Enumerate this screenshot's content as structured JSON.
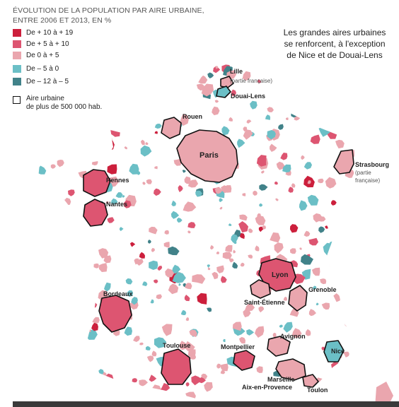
{
  "title": {
    "line1": "ÉVOLUTION DE LA POPULATION PAR AIRE URBAINE,",
    "line2": "ENTRE 2006 ET 2013, EN %"
  },
  "legend": {
    "items": [
      {
        "label": "De + 10 à + 19",
        "color": "#cc1f3c",
        "class_name": "d1"
      },
      {
        "label": "De + 5 à + 10",
        "color": "#dd5571",
        "class_name": "d2"
      },
      {
        "label": "De 0 à + 5",
        "color": "#eaa6ae",
        "class_name": "d3"
      },
      {
        "label": "De – 5 à 0",
        "color": "#6bbfc6",
        "class_name": "d4"
      },
      {
        "label": "De – 12 à – 5",
        "color": "#418289",
        "class_name": "d5"
      }
    ],
    "outline_line1": "Aire urbaine",
    "outline_line2": "de plus de 500 000 hab."
  },
  "callout": {
    "line1": "Les grandes aires urbaines",
    "line2": "se renforcent, à l'exception",
    "line3": "de Nice et de Douai-Lens"
  },
  "cities": [
    {
      "name": "Lille",
      "sub1": "(partie française)",
      "class_name": "d3"
    },
    {
      "name": "Douai-Lens",
      "class_name": "d4"
    },
    {
      "name": "Rouen",
      "class_name": "d3"
    },
    {
      "name": "Paris",
      "class_name": "d3"
    },
    {
      "name": "Strasbourg",
      "sub1": "(partie",
      "sub2": "française)",
      "class_name": "d3"
    },
    {
      "name": "Rennes",
      "class_name": "d2"
    },
    {
      "name": "Nantes",
      "class_name": "d2"
    },
    {
      "name": "Lyon",
      "class_name": "d2"
    },
    {
      "name": "Grenoble",
      "class_name": "d3"
    },
    {
      "name": "Saint-Étienne",
      "class_name": "d3"
    },
    {
      "name": "Bordeaux",
      "class_name": "d2"
    },
    {
      "name": "Avignon",
      "class_name": "d3"
    },
    {
      "name": "Nice",
      "class_name": "d4"
    },
    {
      "name": "Toulouse",
      "class_name": "d2"
    },
    {
      "name": "Montpellier",
      "class_name": "d2"
    },
    {
      "name": "Marseille",
      "sub1": "Aix-en-Provence",
      "class_name": "d3"
    },
    {
      "name": "Toulon",
      "class_name": "d3"
    }
  ]
}
